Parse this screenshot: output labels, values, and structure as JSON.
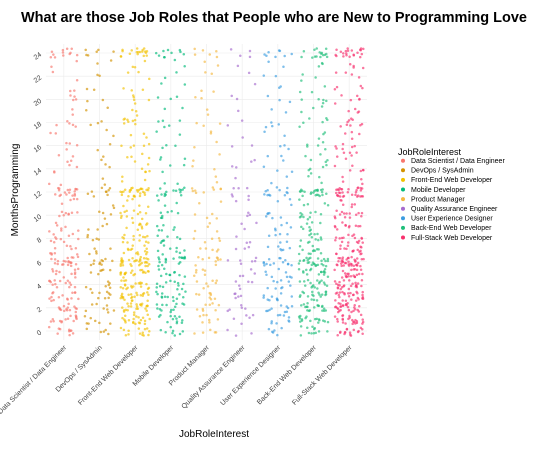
{
  "chart_data": {
    "type": "scatter",
    "title": "What are those Job Roles that People who are New to Programming Love",
    "xlabel": "JobRoleInterest",
    "ylabel": "MonthsProgramming",
    "ylim": [
      0,
      24
    ],
    "yticks": [
      0,
      2,
      4,
      6,
      8,
      10,
      12,
      14,
      16,
      18,
      20,
      22,
      24
    ],
    "jitter": "horizontal and vertical jitter around each category",
    "grid": true,
    "legend": {
      "title": "JobRoleInterest",
      "placement": "right"
    },
    "categories": [
      "Data Scientist / Data Engineer",
      "DevOps / SysAdmin",
      "Front-End Web Developer",
      "Mobile Developer",
      "Product Manager",
      "Quality Assurance Engineer",
      "User Experience Designer",
      "Back-End Web Developer",
      "Full-Stack Web Developer"
    ],
    "series": [
      {
        "name": "Data Scientist / Data Engineer",
        "color": "#F8766D",
        "density": 0.55
      },
      {
        "name": "DevOps / SysAdmin",
        "color": "#D39200",
        "density": 0.25
      },
      {
        "name": "Front-End Web Developer",
        "color": "#F2C200",
        "density": 0.85
      },
      {
        "name": "Mobile Developer",
        "color": "#00BA7A",
        "density": 0.45
      },
      {
        "name": "Product Manager",
        "color": "#F4B942",
        "density": 0.25
      },
      {
        "name": "Quality Assurance Engineer",
        "color": "#A66BCE",
        "density": 0.15
      },
      {
        "name": "User Experience Designer",
        "color": "#3B9CE0",
        "density": 0.35
      },
      {
        "name": "Back-End Web Developer",
        "color": "#1FBF7A",
        "density": 0.7
      },
      {
        "name": "Full-Stack Web Developer",
        "color": "#F8306D",
        "density": 1.0
      }
    ],
    "month_weights": [
      [
        0,
        6
      ],
      [
        1,
        9
      ],
      [
        2,
        10
      ],
      [
        3,
        10
      ],
      [
        4,
        9
      ],
      [
        5,
        8
      ],
      [
        6,
        14
      ],
      [
        7,
        6
      ],
      [
        8,
        6
      ],
      [
        9,
        4
      ],
      [
        10,
        5
      ],
      [
        11,
        2
      ],
      [
        12,
        12
      ],
      [
        13,
        1
      ],
      [
        14,
        2
      ],
      [
        15,
        2
      ],
      [
        16,
        2
      ],
      [
        17,
        1
      ],
      [
        18,
        3
      ],
      [
        19,
        1
      ],
      [
        20,
        2
      ],
      [
        21,
        1
      ],
      [
        22,
        1
      ],
      [
        23,
        1
      ],
      [
        24,
        8
      ]
    ]
  }
}
